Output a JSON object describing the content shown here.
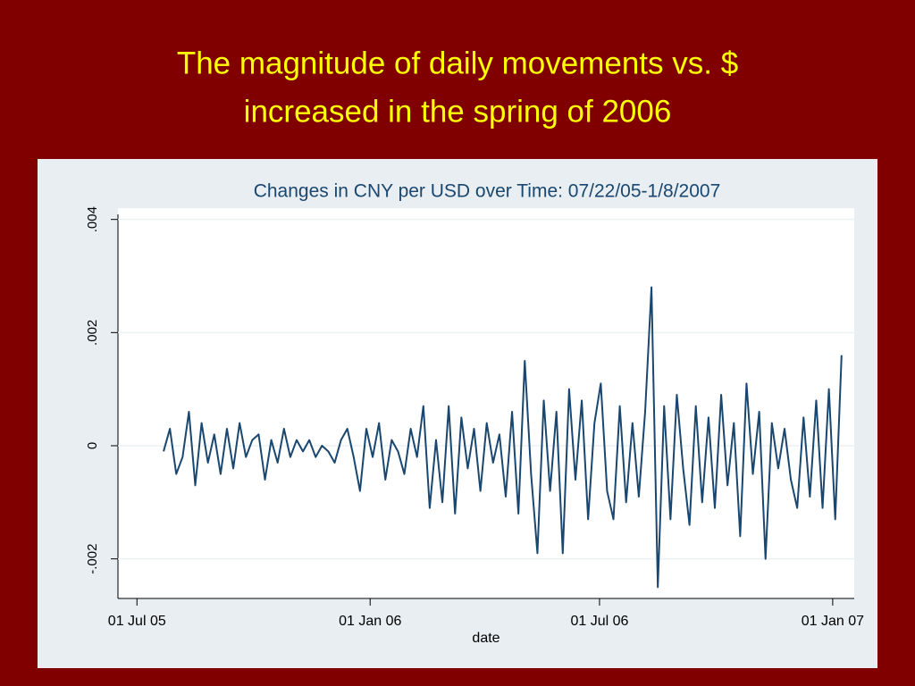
{
  "slide": {
    "title_lines": [
      "The magnitude of daily movements vs. $",
      "increased in the spring of 2006"
    ]
  },
  "chart_data": {
    "type": "line",
    "title": "Changes in CNY per USD over Time: 07/22/05-1/8/2007",
    "x_label": "date",
    "color": "#1a476f",
    "grid": true,
    "xlim": [
      "2005-06-16",
      "2007-01-18"
    ],
    "xticks": [
      {
        "value": "2005-07-01",
        "label": "01 Jul 05"
      },
      {
        "value": "2006-01-01",
        "label": "01 Jan 06"
      },
      {
        "value": "2006-07-01",
        "label": "01 Jul 06"
      },
      {
        "value": "2007-01-01",
        "label": "01 Jan 07"
      }
    ],
    "ylim": [
      -0.0027,
      0.0042
    ],
    "yticks": [
      {
        "value": -0.002,
        "label": "-.002"
      },
      0,
      {
        "value": 0.002,
        "label": ".002"
      },
      {
        "value": 0.004,
        "label": ".004"
      }
    ],
    "x": [
      "2005-07-22",
      "2005-07-27",
      "2005-08-01",
      "2005-08-06",
      "2005-08-11",
      "2005-08-16",
      "2005-08-21",
      "2005-08-26",
      "2005-08-31",
      "2005-09-05",
      "2005-09-10",
      "2005-09-15",
      "2005-09-20",
      "2005-09-25",
      "2005-09-30",
      "2005-10-05",
      "2005-10-10",
      "2005-10-15",
      "2005-10-20",
      "2005-10-25",
      "2005-10-30",
      "2005-11-04",
      "2005-11-09",
      "2005-11-14",
      "2005-11-19",
      "2005-11-24",
      "2005-11-29",
      "2005-12-04",
      "2005-12-09",
      "2005-12-14",
      "2005-12-19",
      "2005-12-24",
      "2005-12-29",
      "2006-01-03",
      "2006-01-08",
      "2006-01-13",
      "2006-01-18",
      "2006-01-23",
      "2006-01-28",
      "2006-02-02",
      "2006-02-07",
      "2006-02-12",
      "2006-02-17",
      "2006-02-22",
      "2006-02-27",
      "2006-03-04",
      "2006-03-09",
      "2006-03-14",
      "2006-03-19",
      "2006-03-24",
      "2006-03-29",
      "2006-04-03",
      "2006-04-08",
      "2006-04-13",
      "2006-04-18",
      "2006-04-23",
      "2006-04-28",
      "2006-05-03",
      "2006-05-08",
      "2006-05-13",
      "2006-05-18",
      "2006-05-23",
      "2006-05-28",
      "2006-06-02",
      "2006-06-07",
      "2006-06-12",
      "2006-06-17",
      "2006-06-22",
      "2006-06-27",
      "2006-07-02",
      "2006-07-07",
      "2006-07-12",
      "2006-07-17",
      "2006-07-22",
      "2006-07-27",
      "2006-08-01",
      "2006-08-06",
      "2006-08-11",
      "2006-08-16",
      "2006-08-21",
      "2006-08-26",
      "2006-08-31",
      "2006-09-05",
      "2006-09-10",
      "2006-09-15",
      "2006-09-20",
      "2006-09-25",
      "2006-09-30",
      "2006-10-05",
      "2006-10-10",
      "2006-10-15",
      "2006-10-20",
      "2006-10-25",
      "2006-10-30",
      "2006-11-04",
      "2006-11-09",
      "2006-11-14",
      "2006-11-19",
      "2006-11-24",
      "2006-11-29",
      "2006-12-04",
      "2006-12-09",
      "2006-12-14",
      "2006-12-19",
      "2006-12-24",
      "2006-12-29",
      "2007-01-03",
      "2007-01-08"
    ],
    "values": [
      -0.0001,
      0.0003,
      -0.0005,
      -0.0002,
      0.0006,
      -0.0007,
      0.0004,
      -0.0003,
      0.0002,
      -0.0005,
      0.0003,
      -0.0004,
      0.0004,
      -0.0002,
      0.0001,
      0.0002,
      -0.0006,
      0.0001,
      -0.0003,
      0.0003,
      -0.0002,
      0.0001,
      -0.0001,
      0.0001,
      -0.0002,
      0,
      -0.0001,
      -0.0003,
      0.0001,
      0.0003,
      -0.0002,
      -0.0008,
      0.0003,
      -0.0002,
      0.0004,
      -0.0006,
      0.0001,
      -0.0001,
      -0.0005,
      0.0003,
      -0.0002,
      0.0007,
      -0.0011,
      0.0001,
      -0.001,
      0.0007,
      -0.0012,
      0.0005,
      -0.0004,
      0.0003,
      -0.0008,
      0.0004,
      -0.0003,
      0.0002,
      -0.0009,
      0.0006,
      -0.0012,
      0.0015,
      -0.0005,
      -0.0019,
      0.0008,
      -0.0008,
      0.0006,
      -0.0019,
      0.001,
      -0.0006,
      0.0008,
      -0.0013,
      0.0004,
      0.0011,
      -0.0008,
      -0.0013,
      0.0007,
      -0.001,
      0.0004,
      -0.0009,
      0.0006,
      0.0028,
      -0.0025,
      0.0007,
      -0.0013,
      0.0009,
      -0.0004,
      -0.0014,
      0.0007,
      -0.001,
      0.0005,
      -0.0011,
      0.0009,
      -0.0007,
      0.0004,
      -0.0016,
      0.0011,
      -0.0005,
      0.0006,
      -0.002,
      0.0004,
      -0.0004,
      0.0003,
      -0.0006,
      -0.0011,
      0.0005,
      -0.0009,
      0.0008,
      -0.0011,
      0.001,
      -0.0013,
      0.0016
    ]
  }
}
